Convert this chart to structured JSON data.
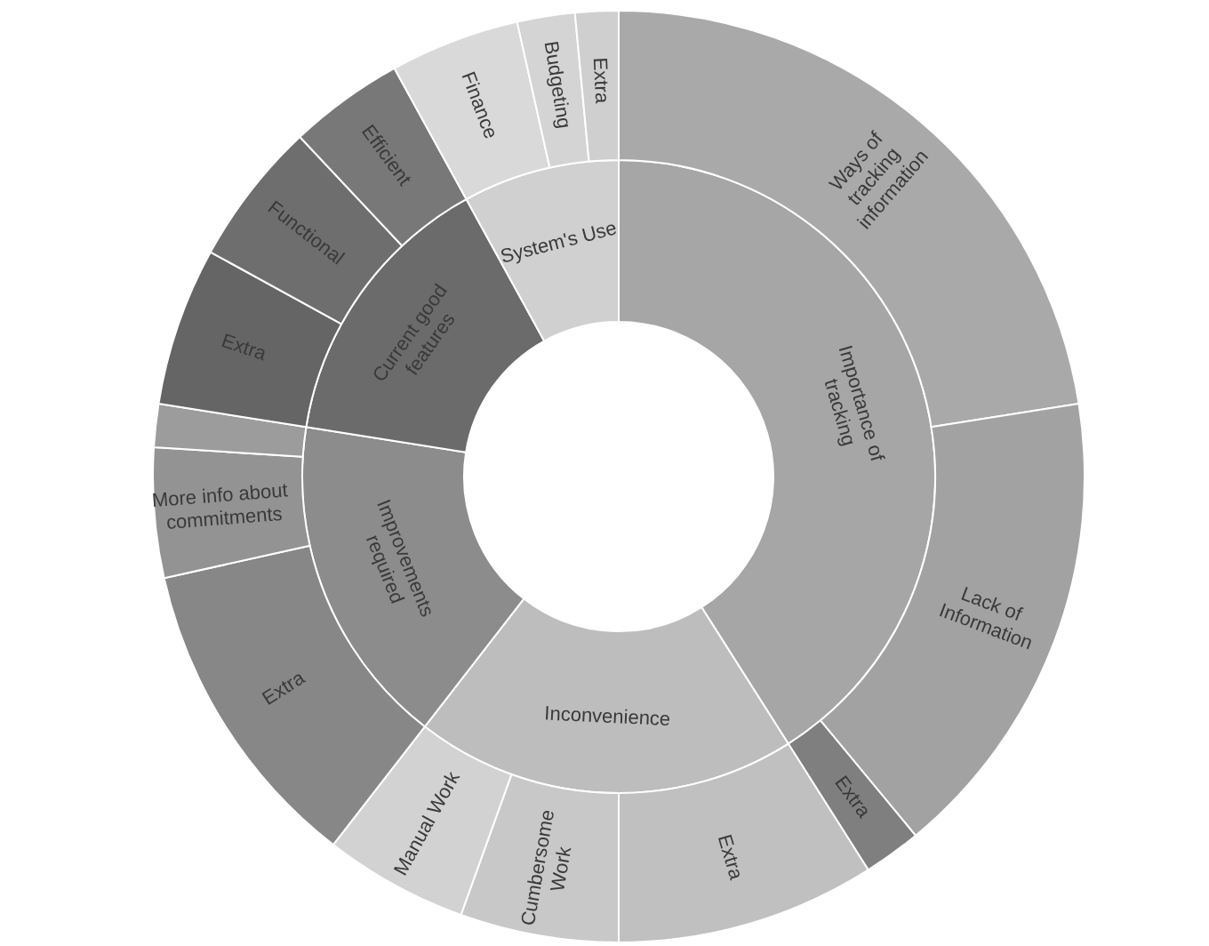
{
  "chart_data": [
    {
      "type": "donut",
      "categories": [
        "Importance of tracking",
        "Inconvenience",
        "Improvements required",
        "Current good features",
        "System's Use"
      ],
      "values": [
        41,
        19.5,
        17,
        14.5,
        8
      ],
      "colors": [
        "#a6a6a6",
        "#bdbdbd",
        "#8c8c8c",
        "#6b6b6b",
        "#d0d0d0"
      ]
    },
    {
      "type": "donut",
      "categories": [
        "Ways of tracking information",
        "Lack of Information",
        "Extra",
        "Extra",
        "Cumbersome Work",
        "Manual Work",
        "Extra",
        "More info about commitments",
        null,
        "Extra",
        "Functional",
        "Efficient",
        "Finance",
        "Budgeting",
        "Extra"
      ],
      "values": [
        22.5,
        16.5,
        2,
        9,
        5.5,
        5,
        11,
        4.5,
        1.5,
        5.5,
        5,
        4,
        4.5,
        2,
        1.5
      ],
      "colors": [
        "#a9a9a9",
        "#a2a2a2",
        "#7f7f7f",
        "#c0c0c0",
        "#c8c8c8",
        "#d2d2d2",
        "#878787",
        "#939393",
        "#9c9c9c",
        "#656565",
        "#6e6e6e",
        "#787878",
        "#d9d9d9",
        "#d4d4d4",
        "#cfcfcf"
      ]
    }
  ]
}
